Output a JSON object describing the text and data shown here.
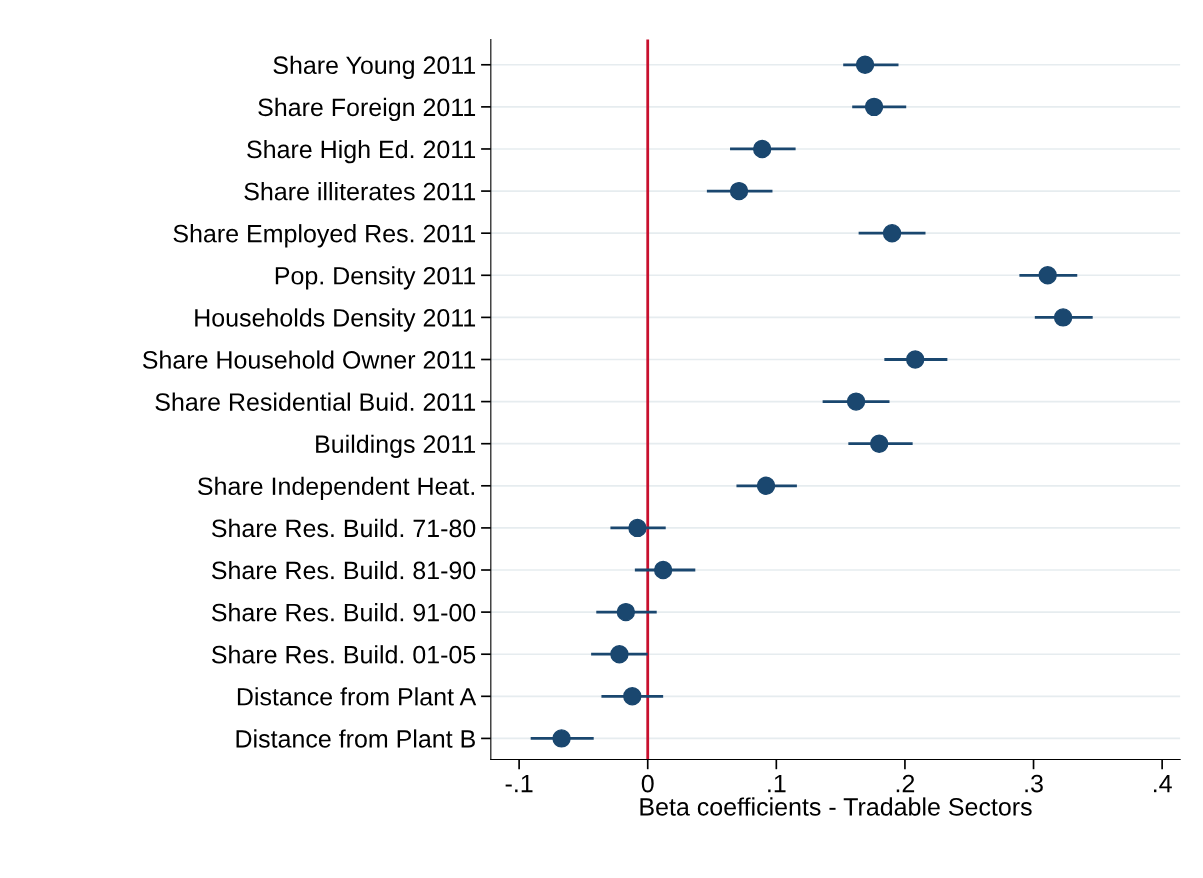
{
  "chart_data": {
    "type": "scatter",
    "orientation": "horizontal",
    "xlabel": "Beta coefficients - Tradable Sectors",
    "categories": [
      "Share Young 2011",
      "Share Foreign 2011",
      "Share High Ed. 2011",
      "Share illiterates 2011",
      "Share Employed Res. 2011",
      "Pop. Density 2011",
      "Households Density 2011",
      "Share Household Owner 2011",
      "Share Residential Buid. 2011",
      "Buildings 2011",
      "Share Independent Heat.",
      "Share Res. Build. 71-80",
      "Share Res. Build. 81-90",
      "Share Res. Build. 91-00",
      "Share Res. Build. 01-05",
      "Distance from Plant A",
      "Distance from Plant B"
    ],
    "series": [
      {
        "color": "#1a476f",
        "values": [
          0.169,
          0.176,
          0.089,
          0.071,
          0.19,
          0.311,
          0.323,
          0.208,
          0.162,
          0.18,
          0.092,
          -0.008,
          0.012,
          -0.017,
          -0.022,
          -0.012,
          -0.067
        ],
        "errors": [
          [
            0.152,
            0.195
          ],
          [
            0.159,
            0.201
          ],
          [
            0.064,
            0.115
          ],
          [
            0.046,
            0.097
          ],
          [
            0.164,
            0.216
          ],
          [
            0.289,
            0.334
          ],
          [
            0.301,
            0.346
          ],
          [
            0.184,
            0.233
          ],
          [
            0.136,
            0.188
          ],
          [
            0.156,
            0.206
          ],
          [
            0.069,
            0.116
          ],
          [
            -0.029,
            0.014
          ],
          [
            -0.01,
            0.037
          ],
          [
            -0.04,
            0.007
          ],
          [
            -0.044,
            0.0
          ],
          [
            -0.036,
            0.012
          ],
          [
            -0.091,
            -0.042
          ]
        ]
      }
    ],
    "xlim": [
      -0.122,
      0.414
    ],
    "xticks": [
      {
        "value": -0.1,
        "label": "-.1"
      },
      0,
      {
        "value": 0.1,
        "label": ".1"
      },
      {
        "value": 0.2,
        "label": ".2"
      },
      {
        "value": 0.3,
        "label": ".3"
      },
      {
        "value": 0.4,
        "label": ".4"
      }
    ],
    "ref_lines": [
      {
        "axis": "x",
        "value": 0,
        "color": "#c8102e"
      }
    ],
    "grid": "y",
    "marker": "circle"
  }
}
